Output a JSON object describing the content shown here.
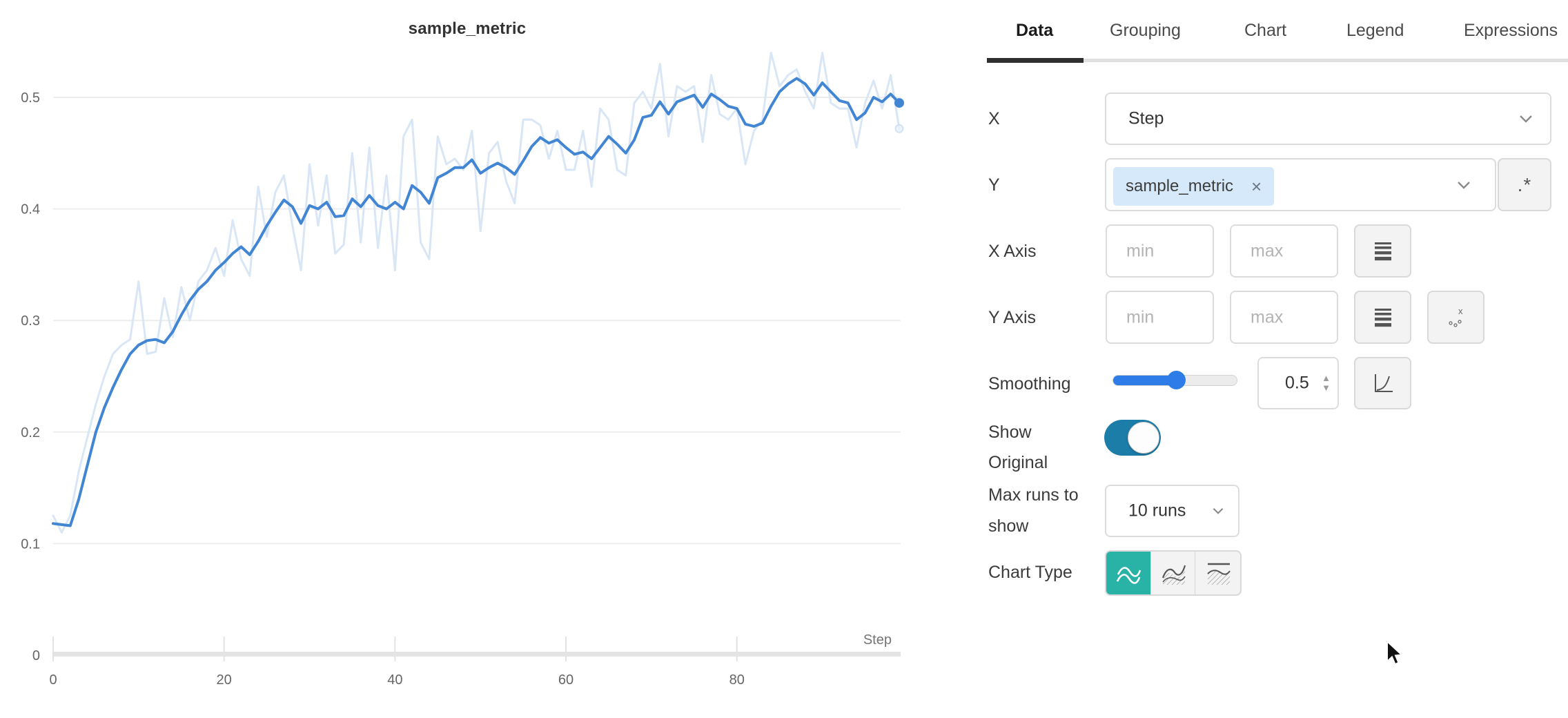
{
  "chart": {
    "title": "sample_metric",
    "x_axis_label": "Step"
  },
  "chart_data": {
    "type": "line",
    "title": "sample_metric",
    "xlabel": "Step",
    "x_range": [
      0,
      99
    ],
    "xticks": [
      0,
      20,
      40,
      60,
      80
    ],
    "yticks": [
      0,
      0.1,
      0.2,
      0.3,
      0.4,
      0.5
    ],
    "ylim": [
      0,
      0.55
    ],
    "grid": "horizontal",
    "legend_position": "none",
    "series": [
      {
        "name": "sample_metric (smoothed, 0.5)",
        "color": "#4286d3",
        "end_dot": true,
        "values": [
          0.118,
          0.117,
          0.116,
          0.14,
          0.17,
          0.2,
          0.222,
          0.24,
          0.256,
          0.27,
          0.278,
          0.282,
          0.283,
          0.28,
          0.29,
          0.305,
          0.318,
          0.328,
          0.335,
          0.345,
          0.352,
          0.36,
          0.366,
          0.359,
          0.371,
          0.385,
          0.397,
          0.408,
          0.402,
          0.387,
          0.403,
          0.4,
          0.406,
          0.393,
          0.394,
          0.409,
          0.402,
          0.412,
          0.403,
          0.4,
          0.406,
          0.4,
          0.421,
          0.415,
          0.405,
          0.428,
          0.432,
          0.437,
          0.437,
          0.444,
          0.432,
          0.437,
          0.441,
          0.437,
          0.431,
          0.443,
          0.456,
          0.464,
          0.459,
          0.462,
          0.455,
          0.449,
          0.451,
          0.445,
          0.455,
          0.465,
          0.458,
          0.45,
          0.462,
          0.482,
          0.484,
          0.496,
          0.485,
          0.496,
          0.499,
          0.502,
          0.491,
          0.503,
          0.498,
          0.492,
          0.49,
          0.476,
          0.474,
          0.477,
          0.492,
          0.505,
          0.512,
          0.517,
          0.512,
          0.502,
          0.513,
          0.505,
          0.497,
          0.495,
          0.48,
          0.486,
          0.5,
          0.496,
          0.503,
          0.495
        ]
      },
      {
        "name": "sample_metric (original)",
        "color": "#d9e6f5",
        "end_dot": true,
        "values": [
          0.125,
          0.11,
          0.125,
          0.165,
          0.195,
          0.225,
          0.25,
          0.27,
          0.278,
          0.283,
          0.335,
          0.27,
          0.272,
          0.32,
          0.285,
          0.33,
          0.3,
          0.335,
          0.345,
          0.365,
          0.34,
          0.39,
          0.355,
          0.34,
          0.42,
          0.375,
          0.415,
          0.43,
          0.385,
          0.345,
          0.44,
          0.385,
          0.43,
          0.36,
          0.368,
          0.45,
          0.37,
          0.455,
          0.365,
          0.43,
          0.345,
          0.465,
          0.48,
          0.37,
          0.355,
          0.465,
          0.44,
          0.445,
          0.435,
          0.47,
          0.38,
          0.45,
          0.46,
          0.425,
          0.405,
          0.48,
          0.48,
          0.475,
          0.445,
          0.47,
          0.435,
          0.435,
          0.47,
          0.42,
          0.49,
          0.48,
          0.435,
          0.43,
          0.495,
          0.505,
          0.49,
          0.53,
          0.465,
          0.51,
          0.505,
          0.51,
          0.46,
          0.52,
          0.485,
          0.48,
          0.49,
          0.44,
          0.47,
          0.48,
          0.54,
          0.51,
          0.52,
          0.525,
          0.505,
          0.49,
          0.54,
          0.495,
          0.49,
          0.49,
          0.455,
          0.495,
          0.515,
          0.49,
          0.52,
          0.472
        ]
      }
    ]
  },
  "tabs": {
    "items": [
      {
        "label": "Data",
        "active": true
      },
      {
        "label": "Grouping",
        "active": false
      },
      {
        "label": "Chart",
        "active": false
      },
      {
        "label": "Legend",
        "active": false
      },
      {
        "label": "Expressions",
        "active": false
      }
    ]
  },
  "form": {
    "x": {
      "label": "X",
      "value": "Step"
    },
    "y": {
      "label": "Y",
      "tag": "sample_metric",
      "remove_icon": "×",
      "regex_button": ".*"
    },
    "x_axis": {
      "label": "X Axis",
      "min_placeholder": "min",
      "max_placeholder": "max"
    },
    "y_axis": {
      "label": "Y Axis",
      "min_placeholder": "min",
      "max_placeholder": "max"
    },
    "smoothing": {
      "label": "Smoothing",
      "value": "0.5"
    },
    "show_original": {
      "label_line1": "Show",
      "label_line2": "Original",
      "state": "on"
    },
    "max_runs": {
      "label_line1": "Max runs to",
      "label_line2": "show",
      "value": "10 runs"
    },
    "chart_type": {
      "label": "Chart Type",
      "selected_index": 0
    }
  },
  "colors": {
    "smoothed_line": "#4286d3",
    "original_line": "#d9e6f5",
    "slider_blue": "#2e7ce8",
    "toggle_on": "#1c7da9",
    "chart_type_selected": "#29b3a7",
    "tag_bg": "#d6e9fb"
  }
}
